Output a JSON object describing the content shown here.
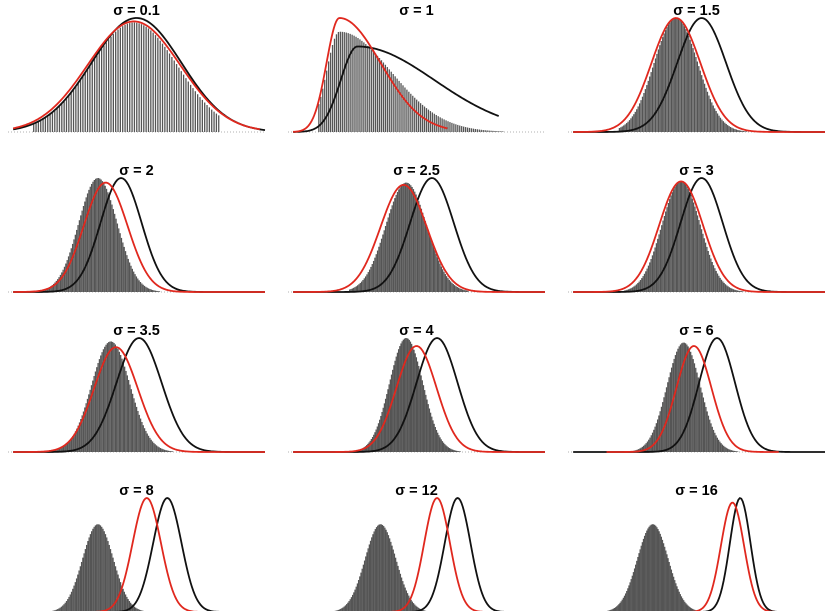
{
  "figure": {
    "black_color": "#111111",
    "red_color": "#e0281e",
    "bar_color": "#555555"
  },
  "chart_data": [
    {
      "type": "bar+line",
      "title": "σ = 0.1",
      "xlim": [
        0,
        1
      ],
      "ylim": [
        0,
        1
      ],
      "histogram": {
        "type": "normal",
        "mean": 0.49,
        "sd": 0.17,
        "peak": 0.96,
        "range": [
          0.1,
          0.82
        ],
        "bars": 80
      },
      "series": [
        {
          "color": "black",
          "curve": {
            "type": "normal",
            "mean": 0.5,
            "sd": 0.175,
            "peak": 1.0
          },
          "x_range": [
            0.02,
            1.0
          ]
        },
        {
          "color": "red",
          "curve": {
            "type": "normal",
            "mean": 0.49,
            "sd": 0.18,
            "peak": 0.97
          },
          "x_range": [
            0.02,
            0.98
          ]
        }
      ]
    },
    {
      "type": "bar+line",
      "title": "σ = 1",
      "xlim": [
        0,
        1
      ],
      "ylim": [
        0,
        1
      ],
      "histogram": {
        "type": "skew",
        "mode": 0.2,
        "sl": 0.05,
        "sr": 0.2,
        "peak": 0.88,
        "range": [
          0.12,
          0.95
        ],
        "bars": 110
      },
      "series": [
        {
          "color": "black",
          "curve": {
            "type": "skew",
            "mode": 0.27,
            "sl": 0.065,
            "sr": 0.3,
            "peak": 0.75
          },
          "x_range": [
            0.02,
            0.82
          ]
        },
        {
          "color": "red",
          "curve": {
            "type": "skew",
            "mode": 0.2,
            "sl": 0.05,
            "sr": 0.16,
            "peak": 1.0
          },
          "x_range": [
            0.02,
            0.62
          ]
        }
      ]
    },
    {
      "type": "bar+line",
      "title": "σ = 1.5",
      "xlim": [
        0,
        1
      ],
      "ylim": [
        0,
        1
      ],
      "histogram": {
        "type": "normal",
        "mean": 0.42,
        "sd": 0.085,
        "peak": 1.0,
        "range": [
          0.2,
          0.7
        ],
        "bars": 90
      },
      "series": [
        {
          "color": "black",
          "curve": {
            "type": "normal",
            "mean": 0.52,
            "sd": 0.095,
            "peak": 1.0
          },
          "x_range": [
            0.02,
            1.0
          ]
        },
        {
          "color": "red",
          "curve": {
            "type": "normal",
            "mean": 0.42,
            "sd": 0.095,
            "peak": 1.0
          },
          "x_range": [
            0.02,
            1.0
          ]
        }
      ]
    },
    {
      "type": "bar+line",
      "title": "σ = 2",
      "xlim": [
        0,
        1
      ],
      "ylim": [
        0,
        1
      ],
      "histogram": {
        "type": "normal",
        "mean": 0.35,
        "sd": 0.075,
        "peak": 1.0,
        "range": [
          0.13,
          0.6
        ],
        "bars": 90
      },
      "series": [
        {
          "color": "black",
          "curve": {
            "type": "normal",
            "mean": 0.44,
            "sd": 0.08,
            "peak": 1.0
          },
          "x_range": [
            0.02,
            1.0
          ]
        },
        {
          "color": "red",
          "curve": {
            "type": "normal",
            "mean": 0.38,
            "sd": 0.085,
            "peak": 0.96
          },
          "x_range": [
            0.02,
            1.0
          ]
        }
      ]
    },
    {
      "type": "bar+line",
      "title": "σ = 2.5",
      "xlim": [
        0,
        1
      ],
      "ylim": [
        0,
        1
      ],
      "histogram": {
        "type": "normal",
        "mean": 0.46,
        "sd": 0.08,
        "peak": 0.96,
        "range": [
          0.24,
          0.7
        ],
        "bars": 90
      },
      "series": [
        {
          "color": "black",
          "curve": {
            "type": "normal",
            "mean": 0.56,
            "sd": 0.085,
            "peak": 1.0
          },
          "x_range": [
            0.02,
            1.0
          ]
        },
        {
          "color": "red",
          "curve": {
            "type": "normal",
            "mean": 0.45,
            "sd": 0.09,
            "peak": 0.94
          },
          "x_range": [
            0.02,
            1.0
          ]
        }
      ]
    },
    {
      "type": "bar+line",
      "title": "σ = 3",
      "xlim": [
        0,
        1
      ],
      "ylim": [
        0,
        1
      ],
      "histogram": {
        "type": "normal",
        "mean": 0.44,
        "sd": 0.075,
        "peak": 0.97,
        "range": [
          0.22,
          0.68
        ],
        "bars": 90
      },
      "series": [
        {
          "color": "black",
          "curve": {
            "type": "normal",
            "mean": 0.52,
            "sd": 0.082,
            "peak": 1.0
          },
          "x_range": [
            0.02,
            1.0
          ]
        },
        {
          "color": "red",
          "curve": {
            "type": "normal",
            "mean": 0.44,
            "sd": 0.085,
            "peak": 0.97
          },
          "x_range": [
            0.02,
            1.0
          ]
        }
      ]
    },
    {
      "type": "bar+line",
      "title": "σ = 3.5",
      "xlim": [
        0,
        1
      ],
      "ylim": [
        0,
        1
      ],
      "histogram": {
        "type": "normal",
        "mean": 0.4,
        "sd": 0.075,
        "peak": 0.97,
        "range": [
          0.18,
          0.64
        ],
        "bars": 90
      },
      "series": [
        {
          "color": "black",
          "curve": {
            "type": "normal",
            "mean": 0.51,
            "sd": 0.088,
            "peak": 1.0
          },
          "x_range": [
            0.02,
            1.0
          ]
        },
        {
          "color": "red",
          "curve": {
            "type": "normal",
            "mean": 0.42,
            "sd": 0.085,
            "peak": 0.92
          },
          "x_range": [
            0.02,
            1.0
          ]
        }
      ]
    },
    {
      "type": "bar+line",
      "title": "σ = 4",
      "xlim": [
        0,
        1
      ],
      "ylim": [
        0,
        1
      ],
      "histogram": {
        "type": "normal",
        "mean": 0.46,
        "sd": 0.065,
        "peak": 1.0,
        "range": [
          0.26,
          0.67
        ],
        "bars": 90
      },
      "series": [
        {
          "color": "black",
          "curve": {
            "type": "normal",
            "mean": 0.58,
            "sd": 0.08,
            "peak": 1.0
          },
          "x_range": [
            0.02,
            1.0
          ]
        },
        {
          "color": "red",
          "curve": {
            "type": "normal",
            "mean": 0.5,
            "sd": 0.078,
            "peak": 0.93
          },
          "x_range": [
            0.02,
            1.0
          ]
        }
      ]
    },
    {
      "type": "bar+line",
      "title": "σ = 6",
      "xlim": [
        0,
        1
      ],
      "ylim": [
        0,
        1
      ],
      "histogram": {
        "type": "normal",
        "mean": 0.45,
        "sd": 0.065,
        "peak": 0.96,
        "range": [
          0.24,
          0.68
        ],
        "bars": 90
      },
      "series": [
        {
          "color": "black",
          "curve": {
            "type": "normal",
            "mean": 0.58,
            "sd": 0.07,
            "peak": 1.0
          },
          "x_range": [
            0.02,
            1.0
          ]
        },
        {
          "color": "red",
          "curve": {
            "type": "normal",
            "mean": 0.49,
            "sd": 0.068,
            "peak": 0.93
          },
          "x_range": [
            0.15,
            0.82
          ]
        }
      ]
    },
    {
      "type": "bar+line",
      "title": "σ = 8",
      "xlim": [
        0,
        1
      ],
      "ylim": [
        0,
        1
      ],
      "histogram": {
        "type": "normal",
        "mean": 0.35,
        "sd": 0.06,
        "peak": 0.77,
        "range": [
          0.12,
          0.58
        ],
        "bars": 95
      },
      "series": [
        {
          "color": "black",
          "curve": {
            "type": "normal",
            "mean": 0.62,
            "sd": 0.055,
            "peak": 1.0
          },
          "x_range": [
            0.25,
            1.0
          ]
        },
        {
          "color": "red",
          "curve": {
            "type": "normal",
            "mean": 0.54,
            "sd": 0.055,
            "peak": 1.0
          },
          "x_range": [
            0.18,
            0.88
          ]
        }
      ]
    },
    {
      "type": "bar+line",
      "title": "σ = 12",
      "xlim": [
        0,
        1
      ],
      "ylim": [
        0,
        1
      ],
      "histogram": {
        "type": "normal",
        "mean": 0.36,
        "sd": 0.06,
        "peak": 0.77,
        "range": [
          0.14,
          0.6
        ],
        "bars": 100
      },
      "series": [
        {
          "color": "black",
          "curve": {
            "type": "normal",
            "mean": 0.66,
            "sd": 0.05,
            "peak": 1.0
          },
          "x_range": [
            0.3,
            1.0
          ]
        },
        {
          "color": "red",
          "curve": {
            "type": "normal",
            "mean": 0.58,
            "sd": 0.05,
            "peak": 1.0
          },
          "x_range": [
            0.25,
            0.92
          ]
        }
      ]
    },
    {
      "type": "bar+line",
      "title": "σ = 16",
      "xlim": [
        0,
        1
      ],
      "ylim": [
        0,
        1
      ],
      "histogram": {
        "type": "normal",
        "mean": 0.33,
        "sd": 0.06,
        "peak": 0.77,
        "range": [
          0.12,
          0.55
        ],
        "bars": 100
      },
      "series": [
        {
          "color": "black",
          "curve": {
            "type": "normal",
            "mean": 0.67,
            "sd": 0.04,
            "peak": 1.0
          },
          "x_range": [
            0.2,
            1.0
          ]
        },
        {
          "color": "red",
          "curve": {
            "type": "normal",
            "mean": 0.64,
            "sd": 0.045,
            "peak": 0.96
          },
          "x_range": [
            0.2,
            0.92
          ]
        }
      ]
    }
  ]
}
